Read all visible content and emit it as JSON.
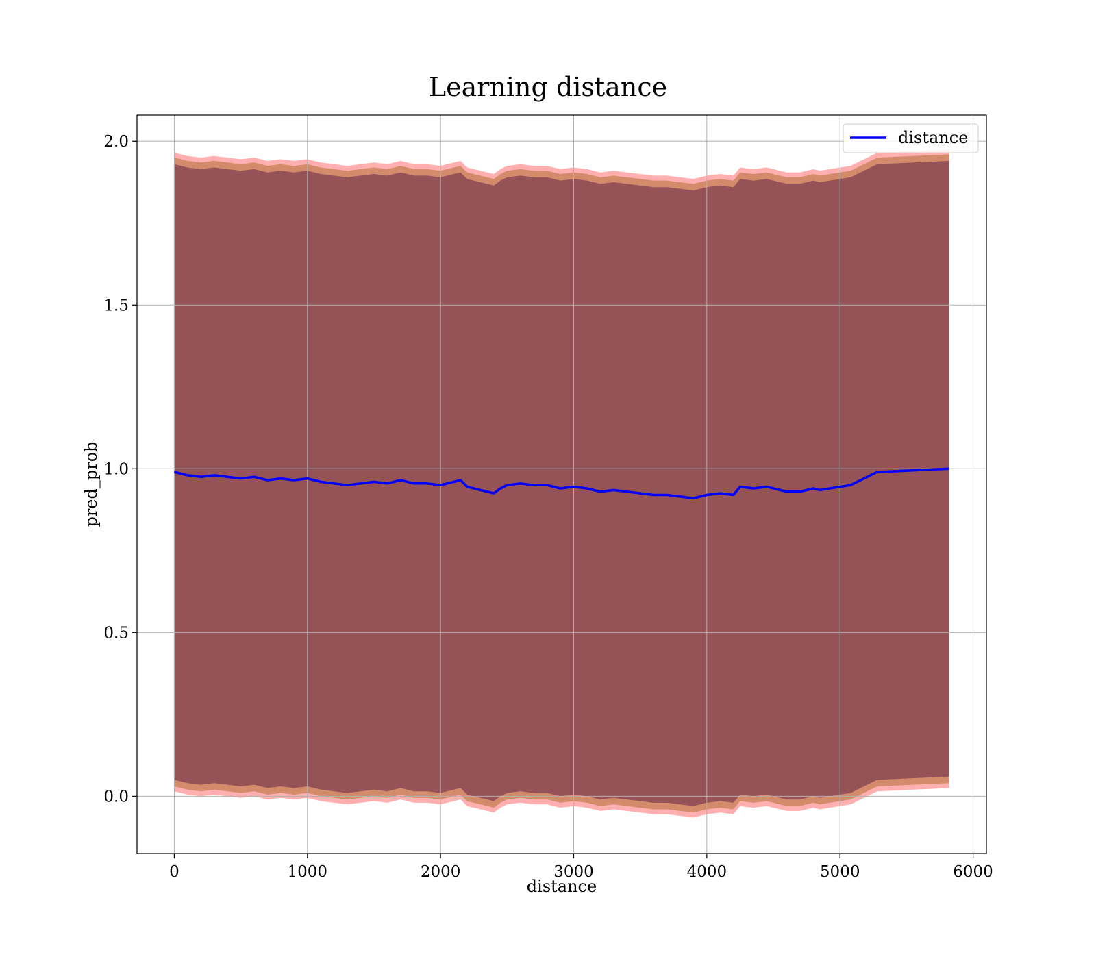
{
  "chart_data": {
    "type": "line",
    "title": "Learning distance",
    "xlabel": "distance",
    "ylabel": "pred_prob",
    "xlim": [
      -280,
      6100
    ],
    "ylim": [
      -0.175,
      2.08
    ],
    "xticks": [
      0,
      1000,
      2000,
      3000,
      4000,
      5000,
      6000
    ],
    "yticks": [
      0.0,
      0.5,
      1.0,
      1.5,
      2.0
    ],
    "xtick_labels": [
      "0",
      "1000",
      "2000",
      "3000",
      "4000",
      "5000",
      "6000"
    ],
    "ytick_labels": [
      "0.0",
      "0.5",
      "1.0",
      "1.5",
      "2.0"
    ],
    "grid": true,
    "legend_position": "top-right",
    "colors": {
      "line": "#0000ff",
      "band_outer": "#ff4d4d",
      "band_middle": "#b8733f",
      "band_inner": "#7a3a4f"
    },
    "series": [
      {
        "name": "distance",
        "x": [
          0,
          100,
          200,
          300,
          400,
          500,
          600,
          700,
          800,
          900,
          1000,
          1100,
          1200,
          1300,
          1400,
          1500,
          1600,
          1700,
          1800,
          1900,
          2000,
          2100,
          2150,
          2200,
          2300,
          2400,
          2450,
          2500,
          2600,
          2700,
          2800,
          2900,
          3000,
          3100,
          3200,
          3300,
          3400,
          3500,
          3600,
          3700,
          3800,
          3900,
          4000,
          4100,
          4200,
          4250,
          4350,
          4450,
          4600,
          4700,
          4800,
          4850,
          5000,
          5080,
          5280,
          5820
        ],
        "y": [
          0.99,
          0.98,
          0.975,
          0.98,
          0.975,
          0.97,
          0.975,
          0.965,
          0.97,
          0.965,
          0.97,
          0.96,
          0.955,
          0.95,
          0.955,
          0.96,
          0.955,
          0.965,
          0.955,
          0.955,
          0.95,
          0.96,
          0.965,
          0.945,
          0.935,
          0.925,
          0.94,
          0.95,
          0.955,
          0.95,
          0.95,
          0.94,
          0.945,
          0.94,
          0.93,
          0.935,
          0.93,
          0.925,
          0.92,
          0.92,
          0.915,
          0.91,
          0.92,
          0.925,
          0.92,
          0.945,
          0.94,
          0.945,
          0.93,
          0.93,
          0.94,
          0.935,
          0.945,
          0.95,
          0.99,
          1.0
        ]
      }
    ],
    "bands": [
      {
        "lower_offset": -0.975,
        "upper_offset": 0.975
      },
      {
        "lower_offset": -0.96,
        "upper_offset": 0.96
      },
      {
        "lower_offset": -0.94,
        "upper_offset": 0.94
      }
    ]
  }
}
